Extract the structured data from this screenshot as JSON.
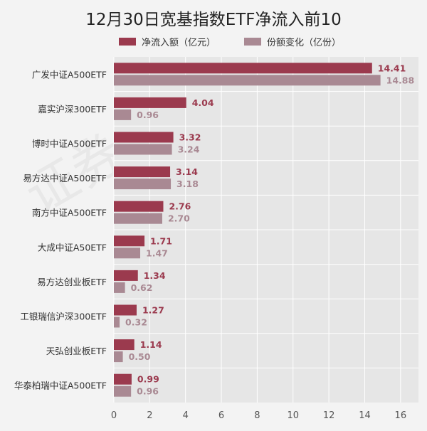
{
  "title": "12月30日宽基指数ETF净流入前10",
  "legend": [
    {
      "label": "净流入额（亿元）",
      "color": "#9b3a4e"
    },
    {
      "label": "份额变化（亿份）",
      "color": "#a98993"
    }
  ],
  "watermark": "证券之星",
  "chart_data": {
    "type": "bar",
    "orientation": "horizontal",
    "title": "12月30日宽基指数ETF净流入前10",
    "categories": [
      "广发中证A500ETF",
      "嘉实沪深300ETF",
      "博时中证A500ETF",
      "易方达中证A500ETF",
      "南方中证A500ETF",
      "大成中证A50ETF",
      "易方达创业板ETF",
      "工银瑞信沪深300ETF",
      "天弘创业板ETF",
      "华泰柏瑞中证A500ETF"
    ],
    "series": [
      {
        "name": "净流入额（亿元）",
        "color": "#9b3a4e",
        "values": [
          14.41,
          4.04,
          3.32,
          3.14,
          2.76,
          1.71,
          1.34,
          1.27,
          1.14,
          0.99
        ]
      },
      {
        "name": "份额变化（亿份）",
        "color": "#a98993",
        "values": [
          14.88,
          0.96,
          3.24,
          3.18,
          2.7,
          1.47,
          0.62,
          0.32,
          0.5,
          0.96
        ]
      }
    ],
    "xlim": [
      0,
      17
    ],
    "xticks": [
      0,
      2,
      4,
      6,
      8,
      10,
      12,
      14,
      16
    ],
    "grid": true,
    "legend_position": "top",
    "label_colors": [
      "#9b3a4e",
      "#a98993"
    ]
  }
}
